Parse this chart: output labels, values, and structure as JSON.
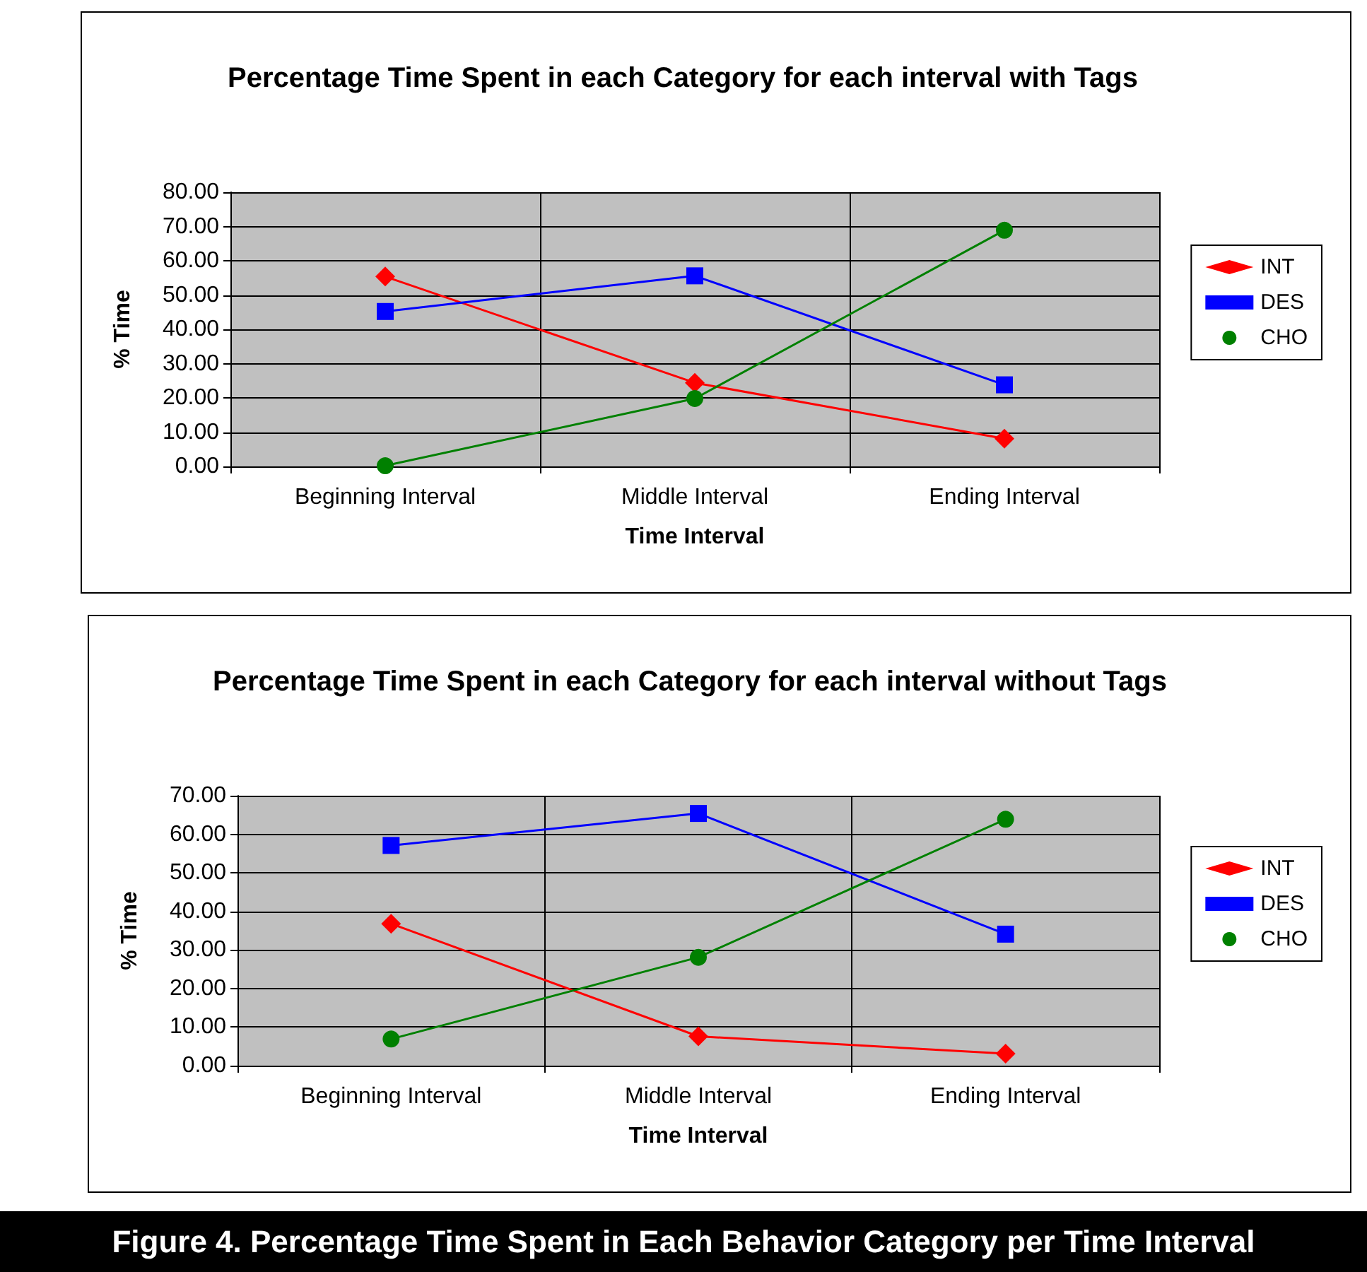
{
  "chart_data": [
    {
      "type": "line",
      "title": "Percentage Time Spent in each Category for each interval with Tags",
      "xlabel": "Time Interval",
      "ylabel": "% Time",
      "categories": [
        "Beginning Interval",
        "Middle Interval",
        "Ending Interval"
      ],
      "series": [
        {
          "name": "INT",
          "color": "#ff0000",
          "marker": "diamond",
          "values": [
            55.4,
            24.4,
            8.1
          ]
        },
        {
          "name": "DES",
          "color": "#0000ff",
          "marker": "square",
          "values": [
            45.2,
            55.6,
            23.8
          ]
        },
        {
          "name": "CHO",
          "color": "#008000",
          "marker": "circle",
          "values": [
            0.2,
            19.8,
            68.9
          ]
        }
      ],
      "ylim": [
        0,
        80
      ],
      "yticks": [
        {
          "value": 0,
          "label": "0.00"
        },
        {
          "value": 10,
          "label": "10.00"
        },
        {
          "value": 20,
          "label": "20.00"
        },
        {
          "value": 30,
          "label": "30.00"
        },
        {
          "value": 40,
          "label": "40.00"
        },
        {
          "value": 50,
          "label": "50.00"
        },
        {
          "value": 60,
          "label": "60.00"
        },
        {
          "value": 70,
          "label": "70.00"
        },
        {
          "value": 80,
          "label": "80.00"
        }
      ],
      "grid": true,
      "legend": "right"
    },
    {
      "type": "line",
      "title": "Percentage Time Spent in each Category for each interval without Tags",
      "xlabel": "Time Interval",
      "ylabel": "% Time",
      "categories": [
        "Beginning Interval",
        "Middle Interval",
        "Ending Interval"
      ],
      "series": [
        {
          "name": "INT",
          "color": "#ff0000",
          "marker": "diamond",
          "values": [
            36.8,
            7.6,
            3.1
          ]
        },
        {
          "name": "DES",
          "color": "#0000ff",
          "marker": "square",
          "values": [
            57.1,
            65.4,
            34.1
          ]
        },
        {
          "name": "CHO",
          "color": "#008000",
          "marker": "circle",
          "values": [
            6.9,
            28.1,
            63.9
          ]
        }
      ],
      "ylim": [
        0,
        70
      ],
      "yticks": [
        {
          "value": 0,
          "label": "0.00"
        },
        {
          "value": 10,
          "label": "10.00"
        },
        {
          "value": 20,
          "label": "20.00"
        },
        {
          "value": 30,
          "label": "30.00"
        },
        {
          "value": 40,
          "label": "40.00"
        },
        {
          "value": 50,
          "label": "50.00"
        },
        {
          "value": 60,
          "label": "60.00"
        },
        {
          "value": 70,
          "label": "70.00"
        }
      ],
      "grid": true,
      "legend": "right",
      "annotations": [
        "Figure 4. Percentage Time Spent in Each Behavior Category per Time Interval"
      ]
    }
  ]
}
